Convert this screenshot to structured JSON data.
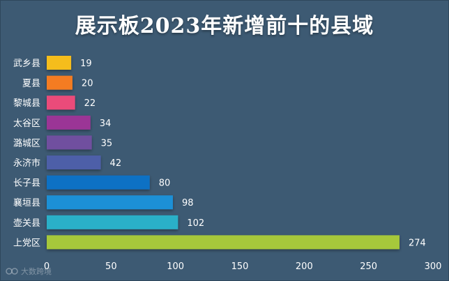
{
  "chart_data": {
    "type": "bar",
    "orientation": "horizontal",
    "title": "展示板2023年新增前十的县域",
    "categories": [
      "武乡县",
      "夏县",
      "黎城县",
      "太谷区",
      "潞城区",
      "永济市",
      "长子县",
      "襄垣县",
      "壶关县",
      "上党区"
    ],
    "values": [
      19,
      20,
      22,
      34,
      35,
      42,
      80,
      98,
      102,
      274
    ],
    "colors": [
      "#f5bd1f",
      "#f47b20",
      "#ea4c7a",
      "#9b3596",
      "#704f9f",
      "#4e5fa8",
      "#1071c4",
      "#1f90d6",
      "#2bb0c8",
      "#a6c83a"
    ],
    "xlim": [
      0,
      300
    ],
    "xticks": [
      "0",
      "50",
      "100",
      "150",
      "200",
      "250",
      "300"
    ],
    "grid": false,
    "data_labels": true
  },
  "watermark": "大数跨境"
}
